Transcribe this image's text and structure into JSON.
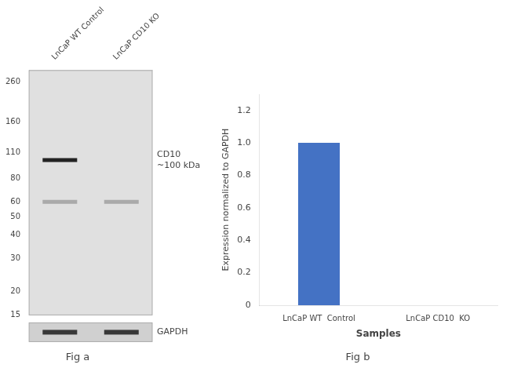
{
  "chart_data": [
    {
      "type": "blot",
      "title": "Fig a",
      "categories": [
        "LnCaP WT Control",
        "LnCaP CD10 KO"
      ],
      "log": "y",
      "ylim": [
        15,
        300
      ],
      "yticks": [
        260,
        160,
        110,
        80,
        60,
        50,
        40,
        30,
        20,
        15
      ],
      "series": [
        {
          "color": "#222222",
          "values": [
            100,
            null
          ]
        },
        {
          "color": "#aaaaaa",
          "values": [
            60,
            60
          ]
        }
      ],
      "annotations": [
        {
          "text": "CD10\n~100 kDa",
          "y": 100
        }
      ],
      "loading_control": {
        "name": "GAPDH",
        "color": "#383838"
      },
      "grid": false
    },
    {
      "type": "bar",
      "title": "Fig b",
      "categories": [
        "LnCaP WT  Control",
        "LnCaP CD10  KO"
      ],
      "values": [
        1.0,
        0.0
      ],
      "color": "#4472c4",
      "ylim": [
        0,
        1.3
      ],
      "yticks": [
        0,
        0.2,
        0.4,
        0.6,
        0.8,
        {
          "value": 1.0,
          "label": "1.0"
        },
        1.2
      ],
      "xlabel": "Samples",
      "ylabel": "Expression normalized to GAPDH",
      "grid": false
    }
  ]
}
